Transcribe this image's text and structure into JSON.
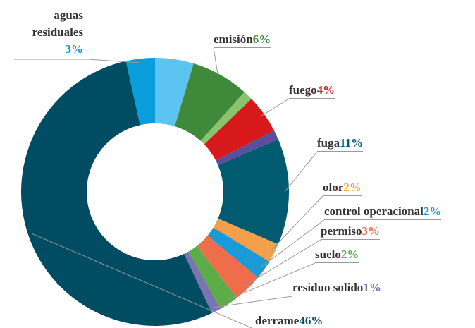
{
  "chart_data": {
    "type": "donut",
    "categories": [
      null,
      "emisión",
      null,
      "fuego",
      null,
      "fuga",
      "olor",
      "control operacional",
      "permiso",
      "suelo",
      "residuo solido",
      "derrame",
      "aguas residuales"
    ],
    "values": [
      4,
      6,
      1,
      4,
      1,
      11,
      2,
      2,
      3,
      2,
      1,
      46,
      3
    ],
    "value_labels": [
      null,
      "6%",
      null,
      "4%",
      null,
      "11%",
      "2%",
      "2%",
      "3%",
      "2%",
      "1%",
      "46%",
      "3%"
    ],
    "colors": [
      "#5bc4f1",
      "#3f8a3a",
      "#8cc46d",
      "#d7191c",
      "#5a4f9c",
      "#005a70",
      "#f4a04a",
      "#1a9ad6",
      "#ee6d4a",
      "#5cad4a",
      "#7b74b0",
      "#004d63",
      "#0a9ddc"
    ]
  }
}
